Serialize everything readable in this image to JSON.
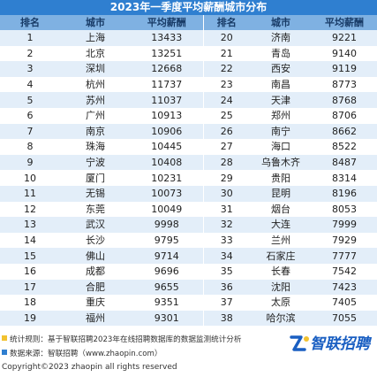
{
  "title": "2023年一季度平均薪酬城市分布",
  "headers": {
    "rank": "排名",
    "city": "城市",
    "salary": "平均薪酬",
    "rank2": "排名",
    "city2": "城市",
    "salary2": "平均薪酬"
  },
  "rows": [
    [
      "1",
      "上海",
      "13433",
      "20",
      "济南",
      "9221"
    ],
    [
      "2",
      "北京",
      "13251",
      "21",
      "青岛",
      "9140"
    ],
    [
      "3",
      "深圳",
      "12668",
      "22",
      "西安",
      "9119"
    ],
    [
      "4",
      "杭州",
      "11737",
      "23",
      "南昌",
      "8773"
    ],
    [
      "5",
      "苏州",
      "11037",
      "24",
      "天津",
      "8768"
    ],
    [
      "6",
      "广州",
      "10913",
      "25",
      "郑州",
      "8706"
    ],
    [
      "7",
      "南京",
      "10906",
      "26",
      "南宁",
      "8662"
    ],
    [
      "8",
      "珠海",
      "10445",
      "27",
      "海口",
      "8522"
    ],
    [
      "9",
      "宁波",
      "10408",
      "28",
      "乌鲁木齐",
      "8487"
    ],
    [
      "10",
      "厦门",
      "10231",
      "29",
      "贵阳",
      "8314"
    ],
    [
      "11",
      "无锡",
      "10073",
      "30",
      "昆明",
      "8196"
    ],
    [
      "12",
      "东莞",
      "10049",
      "31",
      "烟台",
      "8053"
    ],
    [
      "13",
      "武汉",
      "9998",
      "32",
      "大连",
      "7999"
    ],
    [
      "14",
      "长沙",
      "9795",
      "33",
      "兰州",
      "7929"
    ],
    [
      "15",
      "佛山",
      "9714",
      "34",
      "石家庄",
      "7777"
    ],
    [
      "16",
      "成都",
      "9696",
      "35",
      "长春",
      "7542"
    ],
    [
      "17",
      "合肥",
      "9655",
      "36",
      "沈阳",
      "7423"
    ],
    [
      "18",
      "重庆",
      "9351",
      "37",
      "太原",
      "7405"
    ],
    [
      "19",
      "福州",
      "9301",
      "38",
      "哈尔滨",
      "7055"
    ]
  ],
  "footer": {
    "stat_rule": "统计规则：基于智联招聘2023年在线招聘数据库的数据监测统计分析",
    "data_source": "数据来源：智联招聘（www.zhaopin.com）",
    "copyright": "Copyright©2023 zhaopin all rights reserved",
    "logo_text": "智联招聘",
    "logo_icon": "zhaopin-logo-icon"
  },
  "colors": {
    "title_bg": "#2f7fd0",
    "header_bg": "#7fb1e2",
    "stripe": "#e3eef9",
    "logo": "#1a5fc2",
    "marker_yellow": "#f2c230"
  }
}
